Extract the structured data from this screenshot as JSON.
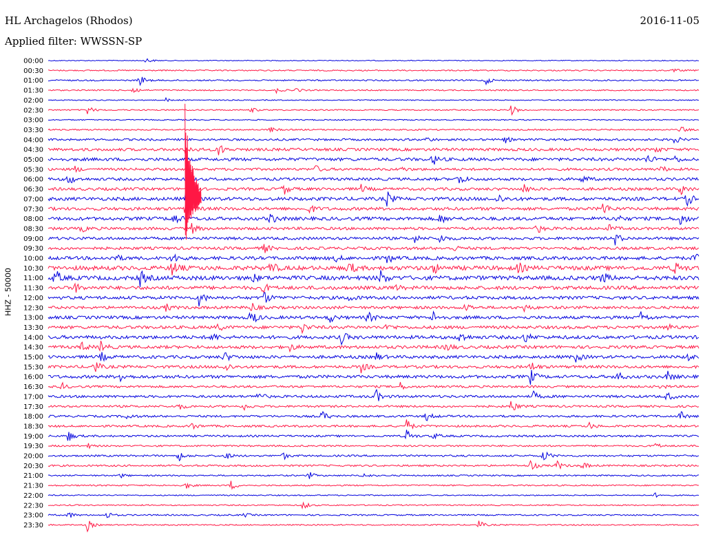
{
  "header": {
    "station": "HL Archagelos (Rhodos)",
    "date": "2016-11-05",
    "filter_label": "Applied filter: WWSSN-SP"
  },
  "colors": {
    "trace_a": "#0000dd",
    "trace_b": "#ff1744",
    "background": "#ffffff"
  },
  "chart_data": {
    "type": "line",
    "title": "HL Archagelos (Rhodos)",
    "subtitle": "Applied filter: WWSSN-SP",
    "ylabel": "HHZ - 50000",
    "xlabel": "",
    "categories": [
      "00:00",
      "00:30",
      "01:00",
      "01:30",
      "02:00",
      "02:30",
      "03:00",
      "03:30",
      "04:00",
      "04:30",
      "05:00",
      "05:30",
      "06:00",
      "06:30",
      "07:00",
      "07:30",
      "08:00",
      "08:30",
      "09:00",
      "09:30",
      "10:00",
      "10:30",
      "11:00",
      "11:30",
      "12:00",
      "12:30",
      "13:00",
      "13:30",
      "14:00",
      "14:30",
      "15:00",
      "15:30",
      "16:00",
      "16:30",
      "17:00",
      "17:30",
      "18:00",
      "18:30",
      "19:00",
      "19:30",
      "20:00",
      "20:30",
      "21:00",
      "21:30",
      "22:00",
      "22:30",
      "23:00",
      "23:30"
    ],
    "series": [
      {
        "color": "#0000dd",
        "noise": 0.6,
        "events": [
          [
            0.15,
            5
          ]
        ]
      },
      {
        "color": "#ff1744",
        "noise": 0.9,
        "events": [
          [
            0.96,
            3
          ]
        ]
      },
      {
        "color": "#0000dd",
        "noise": 1.0,
        "events": [
          [
            0.14,
            9
          ],
          [
            0.67,
            8
          ]
        ]
      },
      {
        "color": "#ff1744",
        "noise": 0.9,
        "events": [
          [
            0.13,
            7
          ],
          [
            0.35,
            4
          ],
          [
            0.38,
            4
          ]
        ]
      },
      {
        "color": "#0000dd",
        "noise": 0.7,
        "events": [
          [
            0.18,
            3
          ]
        ]
      },
      {
        "color": "#ff1744",
        "noise": 0.9,
        "events": [
          [
            0.06,
            7
          ],
          [
            0.31,
            5
          ],
          [
            0.71,
            10
          ]
        ]
      },
      {
        "color": "#0000dd",
        "noise": 0.8,
        "events": []
      },
      {
        "color": "#ff1744",
        "noise": 1.0,
        "events": [
          [
            0.34,
            5
          ],
          [
            0.97,
            6
          ]
        ]
      },
      {
        "color": "#0000dd",
        "noise": 1.5,
        "events": [
          [
            0.58,
            4
          ],
          [
            0.7,
            6
          ],
          [
            0.96,
            8
          ]
        ]
      },
      {
        "color": "#ff1744",
        "noise": 2.0,
        "events": [
          [
            0.21,
            10
          ],
          [
            0.26,
            12
          ],
          [
            0.93,
            6
          ]
        ]
      },
      {
        "color": "#0000dd",
        "noise": 2.2,
        "events": [
          [
            0.59,
            10
          ],
          [
            0.92,
            8
          ],
          [
            0.96,
            6
          ]
        ]
      },
      {
        "color": "#ff1744",
        "noise": 1.8,
        "events": [
          [
            0.04,
            5
          ],
          [
            0.41,
            6
          ],
          [
            0.54,
            4
          ],
          [
            0.94,
            5
          ]
        ]
      },
      {
        "color": "#0000dd",
        "noise": 2.0,
        "events": [
          [
            0.03,
            10
          ],
          [
            0.63,
            10
          ],
          [
            0.82,
            7
          ]
        ]
      },
      {
        "color": "#ff1744",
        "noise": 2.0,
        "events": [
          [
            0.36,
            10
          ],
          [
            0.48,
            6
          ],
          [
            0.73,
            8
          ],
          [
            0.97,
            10
          ]
        ]
      },
      {
        "color": "#0000dd",
        "noise": 2.4,
        "events": [
          [
            0.21,
            12
          ],
          [
            0.52,
            12
          ],
          [
            0.69,
            8
          ],
          [
            0.98,
            12
          ]
        ]
      },
      {
        "color": "#ff1744",
        "noise": 2.2,
        "events": [
          [
            0.21,
            20
          ],
          [
            0.4,
            8
          ],
          [
            0.85,
            14
          ]
        ]
      },
      {
        "color": "#0000dd",
        "noise": 2.4,
        "events": [
          [
            0.19,
            14
          ],
          [
            0.34,
            10
          ],
          [
            0.6,
            9
          ],
          [
            0.87,
            8
          ],
          [
            0.97,
            12
          ]
        ]
      },
      {
        "color": "#ff1744",
        "noise": 2.0,
        "events": [
          [
            0.05,
            6
          ],
          [
            0.22,
            8
          ],
          [
            0.75,
            8
          ],
          [
            0.86,
            6
          ]
        ]
      },
      {
        "color": "#0000dd",
        "noise": 2.0,
        "events": [
          [
            0.56,
            8
          ],
          [
            0.6,
            8
          ],
          [
            0.87,
            10
          ]
        ]
      },
      {
        "color": "#ff1744",
        "noise": 2.0,
        "events": [
          [
            0.33,
            8
          ],
          [
            0.62,
            6
          ]
        ]
      },
      {
        "color": "#0000dd",
        "noise": 2.4,
        "events": [
          [
            0.1,
            8
          ],
          [
            0.19,
            10
          ],
          [
            0.44,
            6
          ],
          [
            0.52,
            8
          ],
          [
            0.99,
            10
          ]
        ]
      },
      {
        "color": "#ff1744",
        "noise": 3.0,
        "events": [
          [
            0.19,
            14
          ],
          [
            0.34,
            12
          ],
          [
            0.46,
            12
          ],
          [
            0.59,
            10
          ],
          [
            0.72,
            10
          ],
          [
            0.96,
            12
          ]
        ]
      },
      {
        "color": "#0000dd",
        "noise": 3.0,
        "events": [
          [
            0.01,
            14
          ],
          [
            0.14,
            14
          ],
          [
            0.31,
            10
          ],
          [
            0.51,
            12
          ],
          [
            0.85,
            10
          ]
        ]
      },
      {
        "color": "#ff1744",
        "noise": 2.5,
        "events": [
          [
            0.04,
            8
          ],
          [
            0.33,
            8
          ],
          [
            0.53,
            6
          ]
        ]
      },
      {
        "color": "#0000dd",
        "noise": 2.3,
        "events": [
          [
            0.23,
            14
          ],
          [
            0.33,
            12
          ],
          [
            0.46,
            6
          ]
        ]
      },
      {
        "color": "#ff1744",
        "noise": 2.0,
        "events": [
          [
            0.18,
            6
          ],
          [
            0.31,
            10
          ],
          [
            0.64,
            8
          ],
          [
            0.73,
            6
          ]
        ]
      },
      {
        "color": "#0000dd",
        "noise": 2.2,
        "events": [
          [
            0.31,
            16
          ],
          [
            0.43,
            10
          ],
          [
            0.49,
            10
          ],
          [
            0.59,
            10
          ],
          [
            0.91,
            10
          ]
        ]
      },
      {
        "color": "#ff1744",
        "noise": 2.2,
        "events": [
          [
            0.26,
            6
          ],
          [
            0.39,
            8
          ],
          [
            0.52,
            6
          ],
          [
            0.95,
            6
          ]
        ]
      },
      {
        "color": "#0000dd",
        "noise": 2.4,
        "events": [
          [
            0.25,
            8
          ],
          [
            0.45,
            10
          ],
          [
            0.63,
            12
          ],
          [
            0.73,
            10
          ]
        ]
      },
      {
        "color": "#ff1744",
        "noise": 2.2,
        "events": [
          [
            0.05,
            8
          ],
          [
            0.08,
            10
          ],
          [
            0.37,
            6
          ],
          [
            0.61,
            8
          ]
        ]
      },
      {
        "color": "#0000dd",
        "noise": 2.2,
        "events": [
          [
            0.08,
            8
          ],
          [
            0.27,
            8
          ],
          [
            0.5,
            10
          ],
          [
            0.81,
            8
          ],
          [
            0.98,
            8
          ]
        ]
      },
      {
        "color": "#ff1744",
        "noise": 2.0,
        "events": [
          [
            0.07,
            12
          ],
          [
            0.27,
            10
          ],
          [
            0.48,
            8
          ],
          [
            0.74,
            10
          ]
        ]
      },
      {
        "color": "#0000dd",
        "noise": 2.2,
        "events": [
          [
            0.11,
            8
          ],
          [
            0.74,
            12
          ],
          [
            0.87,
            12
          ],
          [
            0.95,
            8
          ]
        ]
      },
      {
        "color": "#ff1744",
        "noise": 1.6,
        "events": [
          [
            0.02,
            6
          ],
          [
            0.54,
            6
          ],
          [
            0.94,
            4
          ]
        ]
      },
      {
        "color": "#0000dd",
        "noise": 1.8,
        "events": [
          [
            0.32,
            10
          ],
          [
            0.5,
            16
          ],
          [
            0.74,
            14
          ],
          [
            0.95,
            8
          ]
        ]
      },
      {
        "color": "#ff1744",
        "noise": 1.5,
        "events": [
          [
            0.2,
            6
          ],
          [
            0.3,
            6
          ],
          [
            0.71,
            12
          ]
        ]
      },
      {
        "color": "#0000dd",
        "noise": 1.5,
        "events": [
          [
            0.12,
            6
          ],
          [
            0.42,
            10
          ],
          [
            0.58,
            8
          ],
          [
            0.97,
            8
          ]
        ]
      },
      {
        "color": "#ff1744",
        "noise": 1.5,
        "events": [
          [
            0.22,
            6
          ],
          [
            0.55,
            10
          ],
          [
            0.83,
            6
          ]
        ]
      },
      {
        "color": "#0000dd",
        "noise": 1.4,
        "events": [
          [
            0.03,
            9
          ],
          [
            0.55,
            10
          ],
          [
            0.59,
            6
          ]
        ]
      },
      {
        "color": "#ff1744",
        "noise": 1.2,
        "events": [
          [
            0.06,
            4
          ],
          [
            0.93,
            6
          ]
        ]
      },
      {
        "color": "#0000dd",
        "noise": 1.3,
        "events": [
          [
            0.2,
            8
          ],
          [
            0.27,
            8
          ],
          [
            0.36,
            6
          ],
          [
            0.76,
            12
          ]
        ]
      },
      {
        "color": "#ff1744",
        "noise": 1.3,
        "events": [
          [
            0.74,
            10
          ],
          [
            0.78,
            8
          ],
          [
            0.82,
            6
          ]
        ]
      },
      {
        "color": "#0000dd",
        "noise": 1.0,
        "events": [
          [
            0.11,
            4
          ],
          [
            0.4,
            6
          ],
          [
            0.48,
            6
          ]
        ]
      },
      {
        "color": "#ff1744",
        "noise": 1.0,
        "events": [
          [
            0.21,
            6
          ],
          [
            0.28,
            8
          ]
        ]
      },
      {
        "color": "#0000dd",
        "noise": 0.8,
        "events": [
          [
            0.93,
            4
          ]
        ]
      },
      {
        "color": "#ff1744",
        "noise": 0.9,
        "events": [
          [
            0.39,
            8
          ]
        ]
      },
      {
        "color": "#0000dd",
        "noise": 1.0,
        "events": [
          [
            0.03,
            6
          ],
          [
            0.09,
            6
          ],
          [
            0.3,
            4
          ]
        ]
      },
      {
        "color": "#ff1744",
        "noise": 0.9,
        "events": [
          [
            0.06,
            9
          ],
          [
            0.66,
            8
          ]
        ]
      }
    ],
    "notes": "each row is a 30-minute seismogram trace; events are [fraction of row, peak amplitude in px-free relative units]",
    "big_event": {
      "row": 14,
      "position": 0.21,
      "amplitude": 40
    }
  }
}
